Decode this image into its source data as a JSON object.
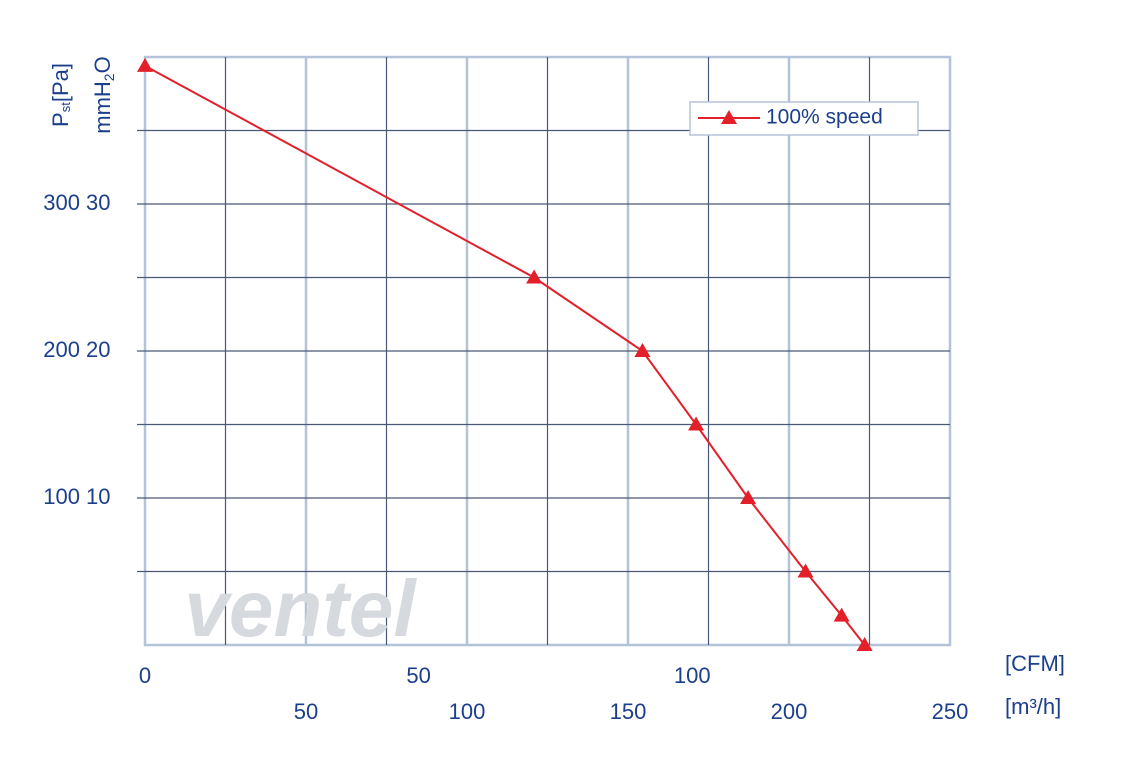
{
  "chart_data": {
    "type": "line",
    "y_label": [
      "P",
      "st",
      "[Pa]"
    ],
    "y2_label": [
      "mmH",
      "2",
      "O"
    ],
    "x_label": "[CFM]",
    "x2_label": "[m³/h]",
    "watermark": "ventel",
    "x": [
      0,
      71.1,
      90.9,
      100.7,
      110.2,
      120.7,
      127.3,
      131.5
    ],
    "series": [
      {
        "name": "100% speed",
        "color": "#e3202a",
        "values": [
          394,
          250,
          200,
          150,
          100,
          50,
          20,
          0
        ]
      }
    ],
    "xlim": [
      0,
      147.1
    ],
    "xticks": [
      0,
      50,
      100
    ],
    "x2lim": [
      0,
      250
    ],
    "x2ticks": [
      50,
      100,
      150,
      200,
      250
    ],
    "x2_gridlines": [
      25,
      50,
      75,
      100,
      125,
      150,
      175,
      200,
      225
    ],
    "ylim": [
      0,
      400
    ],
    "yticks": [
      100,
      200,
      300
    ],
    "y_gridlines": [
      50,
      100,
      150,
      200,
      250,
      300,
      350
    ],
    "y2lim": [
      0,
      40
    ],
    "y2ticks": [
      10,
      20,
      30
    ],
    "grid": true,
    "legend": "top-right"
  }
}
